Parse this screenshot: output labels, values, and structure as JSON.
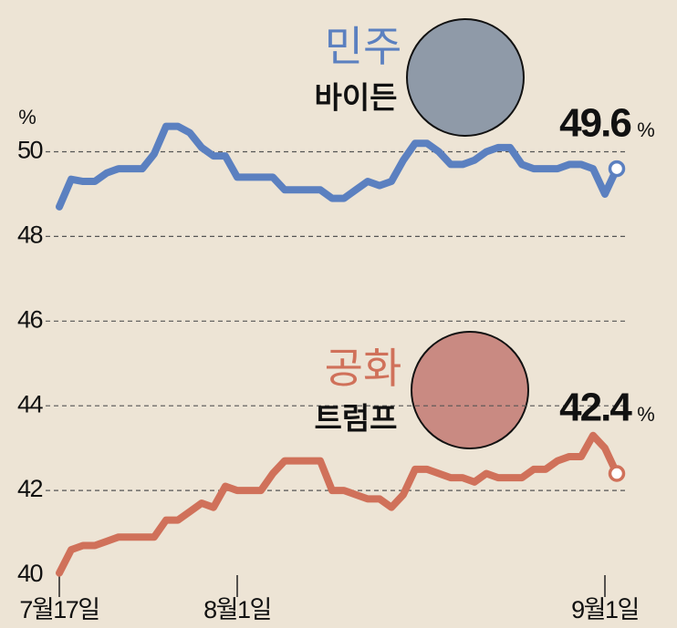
{
  "chart_data": {
    "type": "line",
    "y_unit": "%",
    "x": [
      0,
      1,
      2,
      3,
      4,
      5,
      6,
      7,
      8,
      9,
      10,
      11,
      12,
      13,
      14,
      15,
      16,
      17,
      18,
      19,
      20,
      21,
      22,
      23,
      24,
      25,
      26,
      27,
      28,
      29,
      30,
      31,
      32,
      33,
      34,
      35,
      36,
      37,
      38,
      39,
      40,
      41,
      42,
      43,
      44,
      45,
      46,
      47
    ],
    "xlim": [
      0,
      47
    ],
    "xticks": [
      {
        "value": 0,
        "label": "7월17일"
      },
      {
        "value": 15,
        "label": "8월1일"
      },
      {
        "value": 46,
        "label": "9월1일"
      }
    ],
    "ylim": [
      40,
      53
    ],
    "yticks": [
      40,
      42,
      44,
      46,
      48,
      50
    ],
    "grid": true,
    "series": [
      {
        "name": "민주",
        "candidate": "바이든",
        "color": "#5b80c0",
        "end_label": "49.6",
        "end_unit": "%",
        "values": [
          48.7,
          49.35,
          49.3,
          49.3,
          49.5,
          49.6,
          49.6,
          49.6,
          49.95,
          50.6,
          50.6,
          50.45,
          50.1,
          49.9,
          49.9,
          49.4,
          49.4,
          49.4,
          49.4,
          49.1,
          49.1,
          49.1,
          49.1,
          48.9,
          48.9,
          49.1,
          49.3,
          49.2,
          49.3,
          49.8,
          50.2,
          50.2,
          50.0,
          49.7,
          49.7,
          49.8,
          50.0,
          50.1,
          50.1,
          49.7,
          49.6,
          49.6,
          49.6,
          49.7,
          49.7,
          49.6,
          49.0,
          49.6
        ]
      },
      {
        "name": "공화",
        "candidate": "트럼프",
        "color": "#d0715a",
        "end_label": "42.4",
        "end_unit": "%",
        "values": [
          40.05,
          40.6,
          40.7,
          40.7,
          40.8,
          40.9,
          40.9,
          40.9,
          40.9,
          41.3,
          41.3,
          41.5,
          41.7,
          41.6,
          42.1,
          42.0,
          42.0,
          42.0,
          42.4,
          42.7,
          42.7,
          42.7,
          42.7,
          42.0,
          42.0,
          41.9,
          41.8,
          41.8,
          41.6,
          41.9,
          42.5,
          42.5,
          42.4,
          42.3,
          42.3,
          42.2,
          42.4,
          42.3,
          42.3,
          42.3,
          42.5,
          42.5,
          42.7,
          42.8,
          42.8,
          43.3,
          43.0,
          42.4
        ]
      }
    ]
  }
}
